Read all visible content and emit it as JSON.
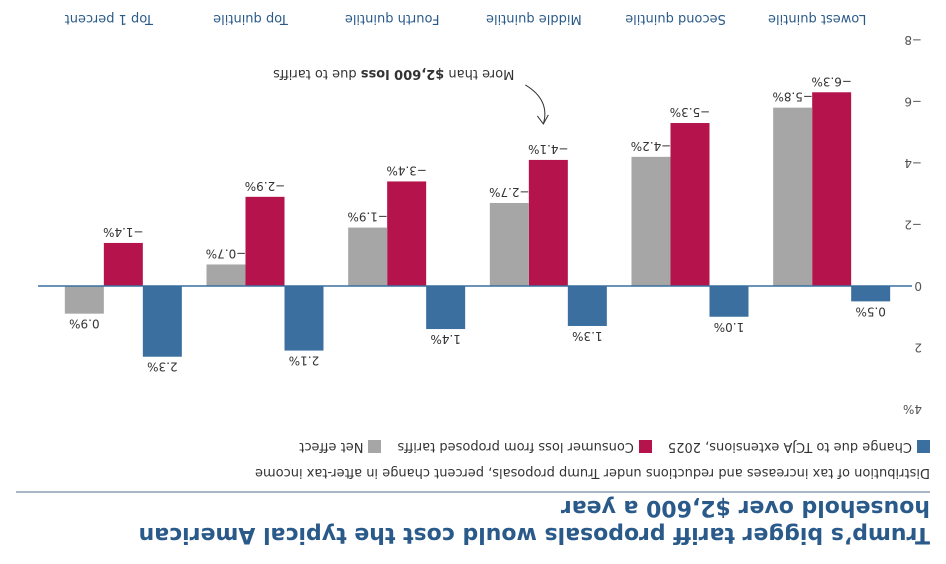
{
  "header": {
    "title": "Trump’s bigger tariff proposals would cost the typical American household over $2,600 a year",
    "subtitle": "Distribution of tax increases and reductions under Trump proposals, percent change in after-tax income"
  },
  "chart_data": {
    "type": "bar",
    "categories": [
      "Lowest quintile",
      "Second quintile",
      "Middle quintile",
      "Fourth quintile",
      "Top quintile",
      "Top 1 percent"
    ],
    "series": [
      {
        "name": "Change due to TCJA extensions, 2025",
        "color": "#3a6f9f",
        "values": [
          0.5,
          1.0,
          1.3,
          1.4,
          2.1,
          2.3
        ],
        "labels": [
          "0.5%",
          "1.0%",
          "1.3%",
          "1.4%",
          "2.1%",
          "2.3%"
        ]
      },
      {
        "name": "Consumer loss from proposed tariffs",
        "color": "#b5134b",
        "values": [
          -6.3,
          -5.3,
          -4.1,
          -3.4,
          -2.9,
          -1.4
        ],
        "labels": [
          "−6.3%",
          "−5.3%",
          "−4.1%",
          "−3.4%",
          "−2.9%",
          "−1.4%"
        ]
      },
      {
        "name": "Net effect",
        "color": "#a6a6a6",
        "values": [
          -5.8,
          -4.2,
          -2.7,
          -1.9,
          -0.7,
          0.9
        ],
        "labels": [
          "−5.8%",
          "−4.2%",
          "−2.7%",
          "−1.9%",
          "−0.7%",
          "0.9%"
        ]
      }
    ],
    "yticks": [
      {
        "value": -8,
        "label": "−8"
      },
      {
        "value": -6,
        "label": "−6"
      },
      {
        "value": -4,
        "label": "−4"
      },
      {
        "value": -2,
        "label": "−2"
      },
      {
        "value": 0,
        "label": "0"
      },
      {
        "value": 2,
        "label": "2"
      },
      {
        "value": 4,
        "label": "4%"
      }
    ],
    "ylim": [
      -8,
      4
    ],
    "legend": "top-left",
    "grid": false,
    "annotation": {
      "prefix": "More than ",
      "bold": "$2,600 loss",
      "suffix": " due to tariffs",
      "target_category": "Middle quintile",
      "target_series": "Consumer loss from proposed tariffs"
    }
  }
}
